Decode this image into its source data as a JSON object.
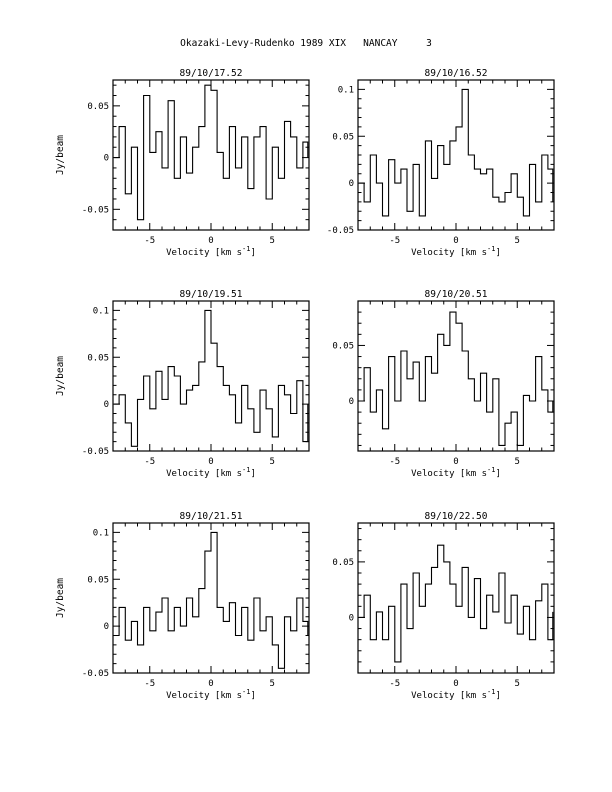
{
  "page": {
    "title": "Okazaki-Levy-Rudenko 1989 XIX   NANCAY     3"
  },
  "chart_data": [
    {
      "type": "line",
      "title": "89/10/17.52",
      "xlabel": "Velocity [km s-1]",
      "ylabel": "Jy/beam",
      "xlim": [
        -8,
        8
      ],
      "ylim": [
        -0.07,
        0.075
      ],
      "xticks": [
        -5,
        0,
        5
      ],
      "yticks": [
        -0.05,
        0,
        0.05
      ],
      "ytick_labels": [
        "-0.05",
        "0",
        "0.05"
      ],
      "series": [
        {
          "x": [
            -7.9,
            -7.5,
            -7.0,
            -6.5,
            -6.0,
            -5.5,
            -5.0,
            -4.5,
            -4.0,
            -3.5,
            -3.0,
            -2.5,
            -2.0,
            -1.5,
            -1.0,
            -0.5,
            0.0,
            0.5,
            1.0,
            1.5,
            2.0,
            2.5,
            3.0,
            3.5,
            4.0,
            4.5,
            5.0,
            5.5,
            6.0,
            6.5,
            7.0,
            7.5,
            7.9
          ],
          "y": [
            0.0,
            0.03,
            -0.035,
            0.01,
            -0.06,
            0.06,
            0.005,
            0.025,
            -0.01,
            0.055,
            -0.02,
            0.02,
            -0.015,
            0.01,
            0.03,
            0.07,
            0.065,
            0.005,
            -0.02,
            0.03,
            -0.01,
            0.02,
            -0.03,
            0.02,
            0.03,
            -0.04,
            0.01,
            -0.02,
            0.035,
            0.02,
            -0.01,
            0.015,
            0.0
          ]
        }
      ]
    },
    {
      "type": "line",
      "title": "89/10/16.52",
      "xlabel": "Velocity [km s-1]",
      "ylabel": "",
      "xlim": [
        -8,
        8
      ],
      "ylim": [
        -0.05,
        0.11
      ],
      "xticks": [
        -5,
        0,
        5
      ],
      "yticks": [
        -0.05,
        0,
        0.05,
        0.1
      ],
      "ytick_labels": [
        "-0.05",
        "0",
        "0.05",
        "0.1"
      ],
      "series": [
        {
          "x": [
            -7.9,
            -7.5,
            -7.0,
            -6.5,
            -6.0,
            -5.5,
            -5.0,
            -4.5,
            -4.0,
            -3.5,
            -3.0,
            -2.5,
            -2.0,
            -1.5,
            -1.0,
            -0.5,
            0.0,
            0.5,
            1.0,
            1.5,
            2.0,
            2.5,
            3.0,
            3.5,
            4.0,
            4.5,
            5.0,
            5.5,
            6.0,
            6.5,
            7.0,
            7.5,
            7.9
          ],
          "y": [
            0.0,
            -0.02,
            0.03,
            0.0,
            -0.035,
            0.025,
            0.0,
            0.015,
            -0.03,
            0.02,
            -0.035,
            0.045,
            0.005,
            0.04,
            0.02,
            0.045,
            0.06,
            0.1,
            0.03,
            0.015,
            0.01,
            0.015,
            -0.015,
            -0.02,
            -0.01,
            0.01,
            -0.015,
            -0.035,
            0.02,
            -0.02,
            0.03,
            0.015,
            -0.02
          ]
        }
      ]
    },
    {
      "type": "line",
      "title": "89/10/19.51",
      "xlabel": "Velocity [km s-1]",
      "ylabel": "Jy/beam",
      "xlim": [
        -8,
        8
      ],
      "ylim": [
        -0.05,
        0.11
      ],
      "xticks": [
        -5,
        0,
        5
      ],
      "yticks": [
        -0.05,
        0,
        0.05,
        0.1
      ],
      "ytick_labels": [
        "-0.05",
        "0",
        "0.05",
        "0.1"
      ],
      "series": [
        {
          "x": [
            -7.9,
            -7.5,
            -7.0,
            -6.5,
            -6.0,
            -5.5,
            -5.0,
            -4.5,
            -4.0,
            -3.5,
            -3.0,
            -2.5,
            -2.0,
            -1.5,
            -1.0,
            -0.5,
            0.0,
            0.5,
            1.0,
            1.5,
            2.0,
            2.5,
            3.0,
            3.5,
            4.0,
            4.5,
            5.0,
            5.5,
            6.0,
            6.5,
            7.0,
            7.5,
            7.9
          ],
          "y": [
            0.0,
            0.01,
            -0.02,
            -0.045,
            0.005,
            0.03,
            -0.005,
            0.035,
            0.005,
            0.04,
            0.03,
            0.0,
            0.015,
            0.02,
            0.045,
            0.1,
            0.065,
            0.04,
            0.02,
            0.01,
            -0.02,
            0.02,
            -0.005,
            -0.03,
            0.015,
            -0.005,
            -0.035,
            0.02,
            0.01,
            -0.01,
            0.025,
            -0.04,
            0.0
          ]
        }
      ]
    },
    {
      "type": "line",
      "title": "89/10/20.51",
      "xlabel": "Velocity [km s-1]",
      "ylabel": "",
      "xlim": [
        -8,
        8
      ],
      "ylim": [
        -0.045,
        0.09
      ],
      "xticks": [
        -5,
        0,
        5
      ],
      "yticks": [
        0,
        0.05
      ],
      "ytick_labels": [
        "0",
        "0.05"
      ],
      "series": [
        {
          "x": [
            -7.9,
            -7.5,
            -7.0,
            -6.5,
            -6.0,
            -5.5,
            -5.0,
            -4.5,
            -4.0,
            -3.5,
            -3.0,
            -2.5,
            -2.0,
            -1.5,
            -1.0,
            -0.5,
            0.0,
            0.5,
            1.0,
            1.5,
            2.0,
            2.5,
            3.0,
            3.5,
            4.0,
            4.5,
            5.0,
            5.5,
            6.0,
            6.5,
            7.0,
            7.5,
            7.9
          ],
          "y": [
            0.0,
            0.03,
            -0.01,
            0.01,
            -0.025,
            0.04,
            0.0,
            0.045,
            0.02,
            0.035,
            0.0,
            0.04,
            0.025,
            0.06,
            0.05,
            0.08,
            0.07,
            0.045,
            0.02,
            0.0,
            0.025,
            -0.01,
            0.02,
            -0.04,
            -0.02,
            -0.01,
            -0.04,
            0.005,
            0.0,
            0.04,
            0.01,
            -0.01,
            0.0
          ]
        }
      ]
    },
    {
      "type": "line",
      "title": "89/10/21.51",
      "xlabel": "Velocity [km s-1]",
      "ylabel": "Jy/beam",
      "xlim": [
        -8,
        8
      ],
      "ylim": [
        -0.05,
        0.11
      ],
      "xticks": [
        -5,
        0,
        5
      ],
      "yticks": [
        -0.05,
        0,
        0.05,
        0.1
      ],
      "ytick_labels": [
        "-0.05",
        "0",
        "0.05",
        "0.1"
      ],
      "series": [
        {
          "x": [
            -7.9,
            -7.5,
            -7.0,
            -6.5,
            -6.0,
            -5.5,
            -5.0,
            -4.5,
            -4.0,
            -3.5,
            -3.0,
            -2.5,
            -2.0,
            -1.5,
            -1.0,
            -0.5,
            0.0,
            0.5,
            1.0,
            1.5,
            2.0,
            2.5,
            3.0,
            3.5,
            4.0,
            4.5,
            5.0,
            5.5,
            6.0,
            6.5,
            7.0,
            7.5,
            7.9
          ],
          "y": [
            -0.01,
            0.02,
            -0.015,
            0.005,
            -0.02,
            0.02,
            -0.005,
            0.015,
            0.03,
            -0.005,
            0.02,
            0.0,
            0.03,
            0.01,
            0.04,
            0.08,
            0.1,
            0.02,
            0.005,
            0.025,
            -0.01,
            0.02,
            -0.015,
            0.03,
            -0.005,
            0.01,
            -0.02,
            -0.045,
            0.01,
            -0.005,
            0.03,
            0.005,
            -0.01
          ]
        }
      ]
    },
    {
      "type": "line",
      "title": "89/10/22.50",
      "xlabel": "Velocity [km s-1]",
      "ylabel": "",
      "xlim": [
        -8,
        8
      ],
      "ylim": [
        -0.05,
        0.085
      ],
      "xticks": [
        -5,
        0,
        5
      ],
      "yticks": [
        0,
        0.05
      ],
      "ytick_labels": [
        "0",
        "0.05"
      ],
      "series": [
        {
          "x": [
            -7.9,
            -7.5,
            -7.0,
            -6.5,
            -6.0,
            -5.5,
            -5.0,
            -4.5,
            -4.0,
            -3.5,
            -3.0,
            -2.5,
            -2.0,
            -1.5,
            -1.0,
            -0.5,
            0.0,
            0.5,
            1.0,
            1.5,
            2.0,
            2.5,
            3.0,
            3.5,
            4.0,
            4.5,
            5.0,
            5.5,
            6.0,
            6.5,
            7.0,
            7.5,
            7.9
          ],
          "y": [
            0.0,
            0.02,
            -0.02,
            0.005,
            -0.02,
            0.01,
            -0.04,
            0.03,
            -0.01,
            0.04,
            0.01,
            0.03,
            0.045,
            0.065,
            0.05,
            0.03,
            0.01,
            0.045,
            0.0,
            0.035,
            -0.01,
            0.02,
            0.005,
            0.04,
            -0.005,
            0.02,
            -0.015,
            0.01,
            -0.02,
            0.015,
            0.03,
            -0.02,
            0.005
          ]
        }
      ]
    }
  ]
}
